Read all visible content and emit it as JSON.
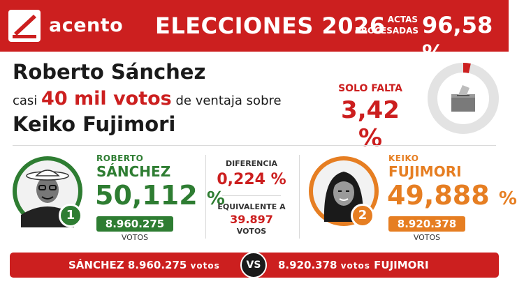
{
  "header": {
    "logo": "acento",
    "title": "ELECCIONES 2026",
    "actas_label_line1": "ACTAS",
    "actas_label_line2": "PROCESADAS",
    "actas_value": "96,58 %",
    "actas_fraction": 0.9658
  },
  "headline": {
    "name1": "Roberto Sánchez",
    "pre": "casi",
    "highlight": "40 mil votos",
    "post": "de ventaja sobre",
    "name2": "Keiko Fujimori"
  },
  "remaining": {
    "label": "SOLO FALTA",
    "value": "3,42 %",
    "fraction": 0.0342,
    "icon": "ballot-box-icon"
  },
  "candidates": [
    {
      "first": "ROBERTO",
      "last": "SÁNCHEZ",
      "pct": "50,112",
      "pct_unit": "%",
      "votes": "8.960.275",
      "votes_label": "VOTOS",
      "rank": "1",
      "color": "#2e7d32"
    },
    {
      "first": "KEIKO",
      "last": "FUJIMORI",
      "pct": "49,888",
      "pct_unit": "%",
      "votes": "8.920.378",
      "votes_label": "VOTOS",
      "rank": "2",
      "color": "#e67e22"
    }
  ],
  "difference": {
    "label": "DIFERENCIA",
    "value": "0,224 %",
    "equiv_label": "EQUIVALENTE A",
    "equiv_value": "39.897",
    "equiv_unit": "VOTOS"
  },
  "bottom": {
    "left_name": "SÁNCHEZ",
    "left_votes": "8.960.275",
    "votes_word": "votos",
    "vs": "VS",
    "right_votes": "8.920.378",
    "right_name": "FUJIMORI"
  },
  "colors": {
    "brand_red": "#cc1f1f",
    "sanchez_green": "#2e7d32",
    "fujimori_orange": "#e67e22"
  }
}
